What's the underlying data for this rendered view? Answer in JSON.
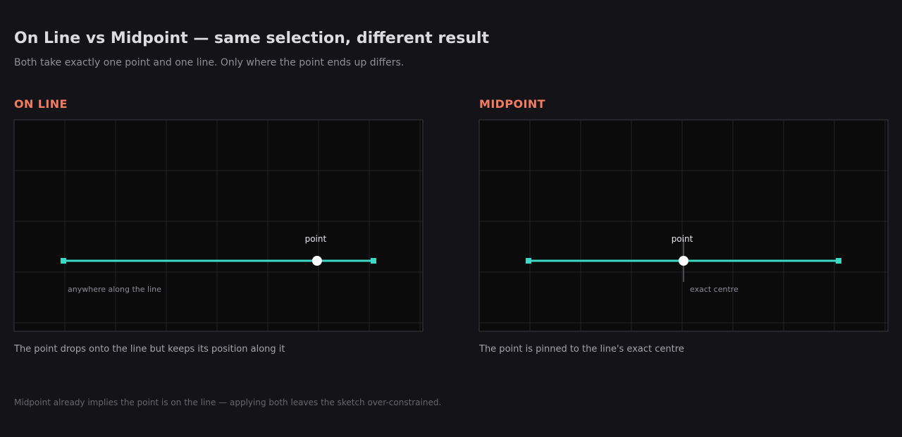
{
  "header": {
    "title": "On Line vs Midpoint — same selection, different result",
    "subtitle": "Both take exactly one point and one line. Only where the point ends up differs."
  },
  "panels": [
    {
      "heading": "ON LINE",
      "point_label": "point",
      "note": "anywhere along the line",
      "caption": "The point drops onto the line but keeps its position along it",
      "point_fraction": 0.818
    },
    {
      "heading": "MIDPOINT",
      "point_label": "point",
      "note": "exact centre",
      "caption": "The point is pinned to the line's exact centre",
      "point_fraction": 0.5
    }
  ],
  "footnote": "Midpoint already implies the point is on the line — applying both leaves the sketch over-constrained.",
  "colors": {
    "background": "#141418",
    "canvas": "#0b0b0c",
    "grid": "#232326",
    "line": "#3dd9c5",
    "point": "#ffffff",
    "accent": "#f07c62"
  }
}
